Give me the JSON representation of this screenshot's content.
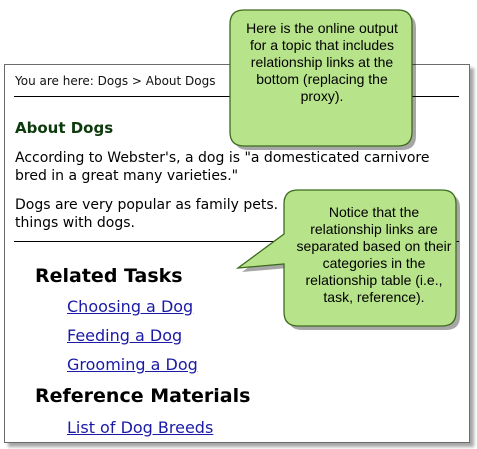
{
  "breadcrumb": "You are here: Dogs > About Dogs",
  "topic": {
    "title": "About Dogs",
    "paragraphs": [
      "According to Webster's, a dog is \"a domesticated carnivore bred in a great many varieties.\"",
      "Dogs are very popular as family pets. Many families like to do things with dogs."
    ]
  },
  "related": {
    "tasks_heading": "Related Tasks",
    "tasks": [
      "Choosing a Dog",
      "Feeding a Dog",
      "Grooming a Dog"
    ],
    "reference_heading": "Reference Materials",
    "references": [
      "List of Dog Breeds"
    ]
  },
  "callouts": {
    "top": "Here is the online output for a topic that includes relationship links at the bottom (replacing the proxy).",
    "bottom": "Notice that the relationship links are separated based on their categories in the relationship table (i.e., task, reference)."
  },
  "colors": {
    "callout_fill": "#b7e38a",
    "callout_border": "#3d6b1e",
    "link": "#1a1aa6",
    "topic_title": "#0c3a0c"
  }
}
